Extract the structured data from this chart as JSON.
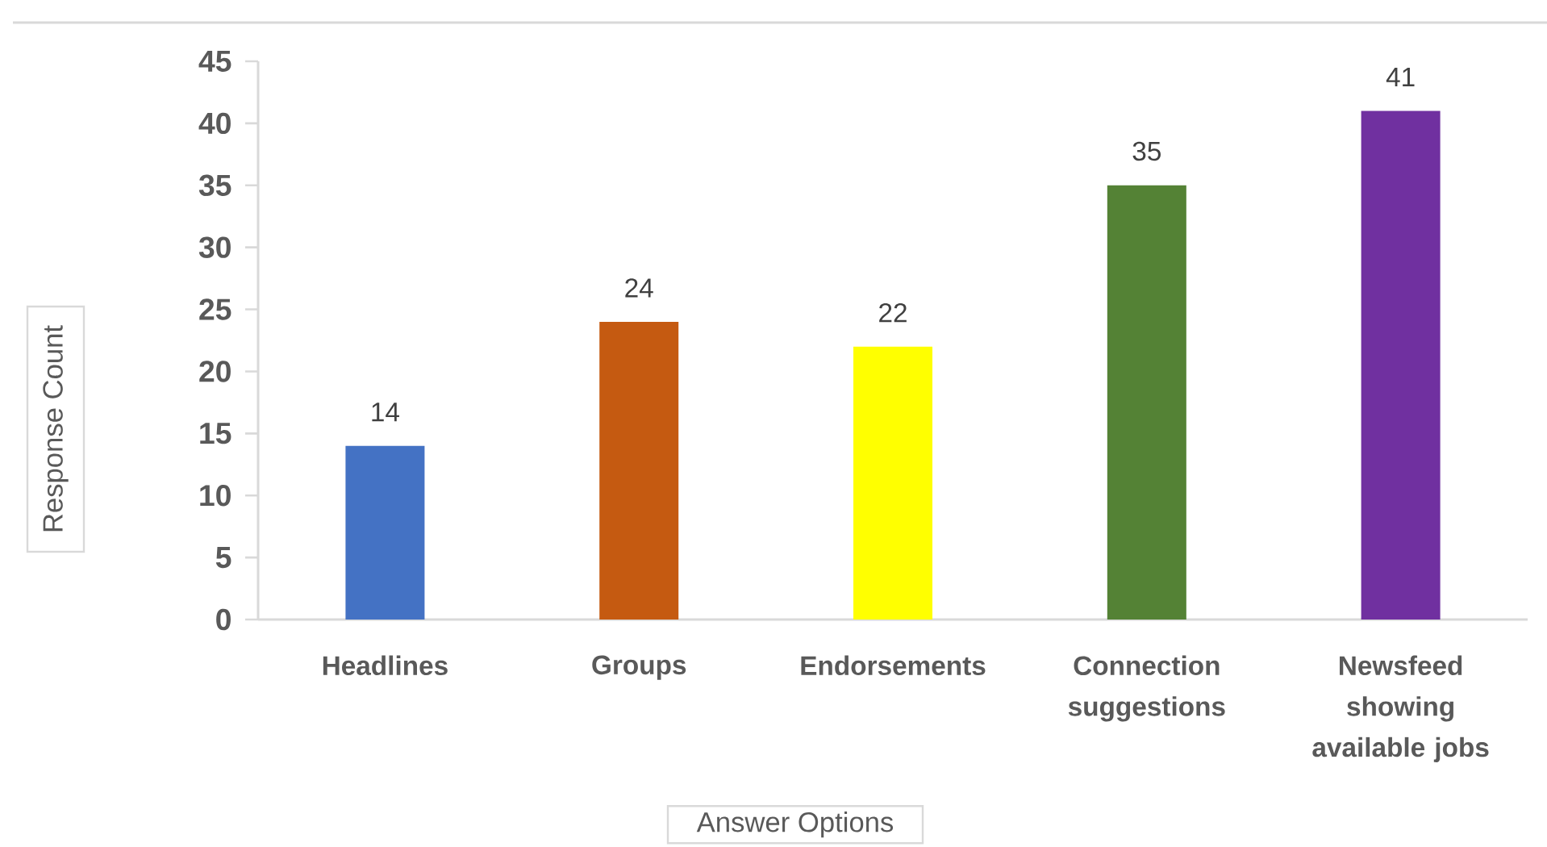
{
  "chart_data": {
    "type": "bar",
    "categories": [
      "Headlines",
      "Groups",
      "Endorsements",
      "Connection suggestions",
      "Newsfeed showing available jobs"
    ],
    "values": [
      14,
      24,
      22,
      35,
      41
    ],
    "colors": [
      "#4472c4",
      "#c55a11",
      "#ffff00",
      "#548235",
      "#7030a0"
    ],
    "ylim": [
      0,
      45
    ],
    "yticks": [
      0,
      5,
      10,
      15,
      20,
      25,
      30,
      35,
      40,
      45
    ],
    "xlabel": "Answer Options",
    "ylabel": "Response Count",
    "data_labels": true
  }
}
